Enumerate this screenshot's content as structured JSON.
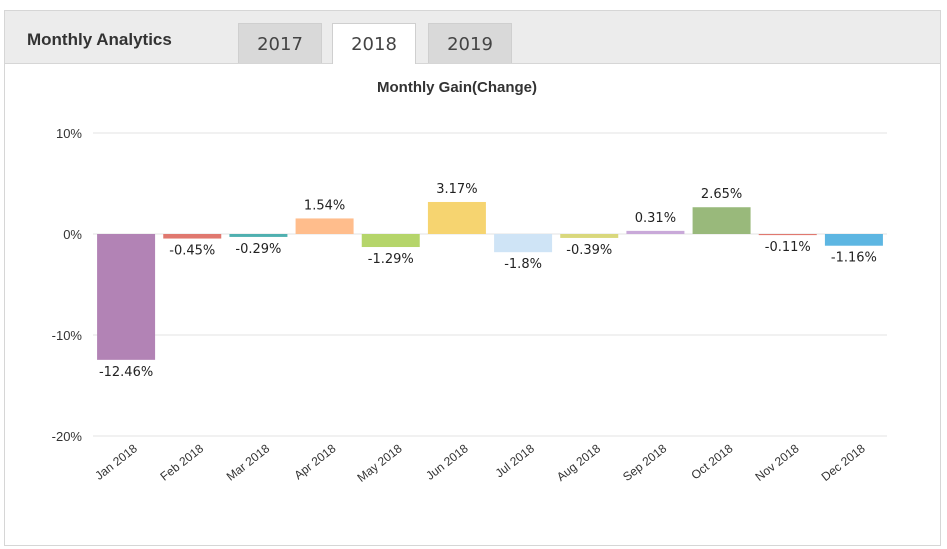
{
  "header": {
    "title": "Monthly Analytics",
    "tabs": [
      "2017",
      "2018",
      "2019"
    ],
    "active_tab": 1
  },
  "chart_data": {
    "type": "bar",
    "title": "Monthly Gain(Change)",
    "categories": [
      "Jan 2018",
      "Feb 2018",
      "Mar 2018",
      "Apr 2018",
      "May 2018",
      "Jun 2018",
      "Jul 2018",
      "Aug 2018",
      "Sep 2018",
      "Oct 2018",
      "Nov 2018",
      "Dec 2018"
    ],
    "values": [
      -12.46,
      -0.45,
      -0.29,
      1.54,
      -1.29,
      3.17,
      -1.8,
      -0.39,
      0.31,
      2.65,
      -0.11,
      -1.16
    ],
    "value_labels": [
      "-12.46%",
      "-0.45%",
      "-0.29%",
      "1.54%",
      "-1.29%",
      "3.17%",
      "-1.8%",
      "-0.39%",
      "0.31%",
      "2.65%",
      "-0.11%",
      "-1.16%"
    ],
    "colors": [
      "#b283b5",
      "#e0786f",
      "#4fb0b0",
      "#ffbd8c",
      "#b5d56a",
      "#f6d470",
      "#cfe4f6",
      "#d9d87c",
      "#c9a9d9",
      "#99b97b",
      "#e0786f",
      "#5db6e2"
    ],
    "ylim": [
      -20,
      10
    ],
    "yticks": [
      {
        "value": -20,
        "label": "-20%"
      },
      {
        "value": -10,
        "label": "-10%"
      },
      {
        "value": 0,
        "label": "0%"
      },
      {
        "value": 10,
        "label": "10%"
      }
    ],
    "grid": true
  }
}
